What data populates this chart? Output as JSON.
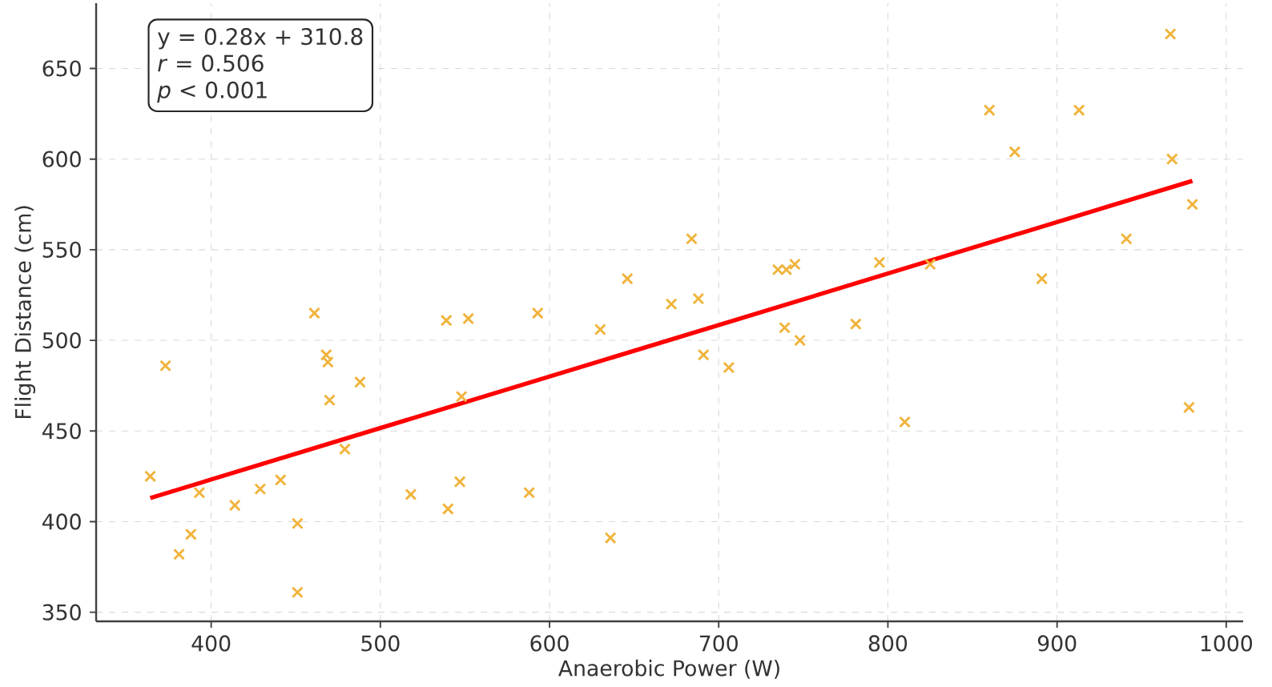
{
  "chart_data": {
    "type": "scatter",
    "xlabel": "Anaerobic Power (W)",
    "ylabel": "Flight Distance (cm)",
    "annotations": [
      "y = 0.28x + 310.8",
      "*r* = 0.506",
      "*p* < 0.001"
    ],
    "xlim": [
      332,
      1010
    ],
    "ylim": [
      345,
      686
    ],
    "xticks": [
      400,
      500,
      600,
      700,
      800,
      900,
      1000
    ],
    "yticks": [
      350,
      400,
      450,
      500,
      550,
      600,
      650
    ],
    "grid": true,
    "series": [
      {
        "color": "#f0b43c",
        "marker": "cross",
        "x": [
          364,
          373,
          393,
          388,
          381,
          414,
          429,
          441,
          451,
          451,
          461,
          468,
          469,
          470,
          488,
          479,
          518,
          540,
          547,
          548,
          539,
          552,
          588,
          593,
          630,
          636,
          646,
          672,
          684,
          688,
          691,
          706,
          735,
          740,
          745,
          739,
          748,
          781,
          795,
          810,
          825,
          860,
          875,
          891,
          913,
          941,
          967,
          968,
          980,
          978
        ],
        "values": [
          425,
          486,
          416,
          393,
          382,
          409,
          418,
          423,
          399,
          361,
          515,
          492,
          488,
          467,
          477,
          440,
          415,
          407,
          422,
          469,
          511,
          512,
          416,
          515,
          506,
          391,
          534,
          520,
          556,
          523,
          492,
          485,
          539,
          539,
          542,
          507,
          500,
          509,
          543,
          455,
          542,
          627,
          604,
          534,
          627,
          556,
          669,
          600,
          575,
          463
        ]
      },
      {
        "type": "line",
        "color": "#ff0000",
        "marker": "none",
        "line_style": "solid",
        "x": [
          364,
          980
        ],
        "values": [
          413,
          588
        ]
      }
    ]
  }
}
